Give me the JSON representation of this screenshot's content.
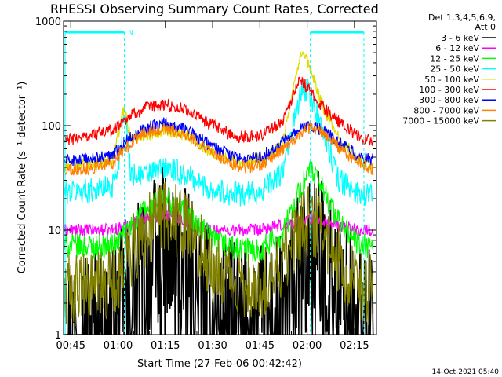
{
  "chart_data": {
    "type": "line",
    "title": "RHESSI Observing Summary Count Rates, Corrected",
    "xlabel": "Start Time (27-Feb-06 00:42:42)",
    "ylabel": "Corrected Count Rate (s⁻¹ detector⁻¹)",
    "y_scale": "log",
    "ylim": [
      1,
      1000
    ],
    "xlim": [
      "00:42:42",
      "02:22:00"
    ],
    "x_ticks": [
      "00:45",
      "01:00",
      "01:15",
      "01:30",
      "01:45",
      "02:00",
      "02:15"
    ],
    "y_ticks": [
      "1",
      "10",
      "100",
      "1000"
    ],
    "grid": false,
    "legend_position": "top-right",
    "legend_header": [
      "Det 1,3,4,5,6,9,",
      "Att 0"
    ],
    "annotations": {
      "night_marker": "N",
      "night_intervals": [
        [
          "00:42:42",
          "01:02:00"
        ],
        [
          "02:01:00",
          "02:18:00"
        ]
      ],
      "night_bar_color": "#00ffff"
    },
    "timestamp": "14-Oct-2021 05:40",
    "series": [
      {
        "name": "3 - 6 keV",
        "color": "#000000",
        "x": [
          "00:43",
          "00:50",
          "00:58",
          "01:02",
          "01:08",
          "01:15",
          "01:22",
          "01:30",
          "01:38",
          "01:45",
          "01:52",
          "01:58",
          "02:01",
          "02:05",
          "02:10",
          "02:17",
          "02:21"
        ],
        "y": [
          1,
          1,
          1,
          1.5,
          3,
          5.5,
          3,
          1.3,
          1,
          1,
          1.3,
          3,
          6,
          4,
          2,
          1,
          1
        ]
      },
      {
        "name": "6 - 12 keV",
        "color": "#ff00ff",
        "x": [
          "00:43",
          "00:50",
          "00:58",
          "01:02",
          "01:08",
          "01:15",
          "01:22",
          "01:30",
          "01:38",
          "01:45",
          "01:52",
          "01:58",
          "02:01",
          "02:05",
          "02:10",
          "02:17",
          "02:21"
        ],
        "y": [
          10,
          10,
          10,
          11,
          13,
          14,
          12,
          10,
          10,
          10,
          11,
          12,
          13,
          12,
          11,
          10,
          10
        ]
      },
      {
        "name": "12 - 25 keV",
        "color": "#00ff00",
        "x": [
          "00:43",
          "00:50",
          "00:58",
          "01:02",
          "01:08",
          "01:15",
          "01:22",
          "01:30",
          "01:38",
          "01:45",
          "01:52",
          "01:58",
          "02:01",
          "02:05",
          "02:10",
          "02:17",
          "02:21"
        ],
        "y": [
          7,
          7,
          7,
          9,
          15,
          20,
          14,
          8,
          6.5,
          6.5,
          9,
          25,
          38,
          25,
          12,
          7,
          7
        ]
      },
      {
        "name": "25 - 50 keV",
        "color": "#00ffff",
        "x": [
          "00:43",
          "00:50",
          "00:58",
          "01:00",
          "01:02",
          "01:04",
          "01:08",
          "01:15",
          "01:22",
          "01:30",
          "01:38",
          "01:45",
          "01:52",
          "01:58",
          "02:00",
          "02:05",
          "02:10",
          "02:17",
          "02:21"
        ],
        "y": [
          23,
          24,
          26,
          40,
          150,
          35,
          33,
          40,
          33,
          24,
          22,
          23,
          35,
          200,
          230,
          90,
          30,
          22,
          22
        ]
      },
      {
        "name": "50 - 100 keV",
        "color": "#dddd00",
        "x": [
          "00:43",
          "00:50",
          "00:58",
          "01:00",
          "01:02",
          "01:04",
          "01:08",
          "01:15",
          "01:22",
          "01:30",
          "01:38",
          "01:45",
          "01:52",
          "01:58",
          "02:00",
          "02:05",
          "02:10",
          "02:17",
          "02:21"
        ],
        "y": [
          42,
          43,
          47,
          80,
          150,
          75,
          80,
          92,
          80,
          55,
          45,
          48,
          65,
          480,
          420,
          150,
          75,
          45,
          42
        ]
      },
      {
        "name": "100 - 300 keV",
        "color": "#ff0000",
        "x": [
          "00:43",
          "00:50",
          "00:58",
          "01:02",
          "01:08",
          "01:15",
          "01:22",
          "01:30",
          "01:38",
          "01:45",
          "01:52",
          "01:58",
          "02:00",
          "02:05",
          "02:10",
          "02:17",
          "02:21"
        ],
        "y": [
          72,
          80,
          90,
          115,
          145,
          160,
          140,
          100,
          78,
          80,
          110,
          280,
          230,
          150,
          110,
          75,
          72
        ]
      },
      {
        "name": "300 - 800 keV",
        "color": "#0000ff",
        "x": [
          "00:43",
          "00:50",
          "00:58",
          "01:02",
          "01:08",
          "01:15",
          "01:22",
          "01:30",
          "01:38",
          "01:45",
          "01:52",
          "01:58",
          "02:01",
          "02:05",
          "02:10",
          "02:17",
          "02:21"
        ],
        "y": [
          46,
          47,
          52,
          70,
          95,
          105,
          90,
          63,
          48,
          50,
          68,
          92,
          100,
          90,
          70,
          50,
          46
        ]
      },
      {
        "name": "800 - 7000 keV",
        "color": "#ff8000",
        "x": [
          "00:43",
          "00:50",
          "00:58",
          "01:02",
          "01:08",
          "01:15",
          "01:22",
          "01:30",
          "01:38",
          "01:45",
          "01:52",
          "01:58",
          "02:01",
          "02:05",
          "02:10",
          "02:17",
          "02:21"
        ],
        "y": [
          38,
          39,
          43,
          60,
          85,
          95,
          82,
          55,
          40,
          41,
          58,
          85,
          95,
          85,
          62,
          42,
          38
        ]
      },
      {
        "name": "7000 - 15000 keV",
        "color": "#808000",
        "x": [
          "00:43",
          "00:50",
          "00:58",
          "01:02",
          "01:08",
          "01:15",
          "01:22",
          "01:30",
          "01:38",
          "01:45",
          "01:52",
          "01:58",
          "02:01",
          "02:05",
          "02:10",
          "02:17",
          "02:21"
        ],
        "y": [
          2.6,
          2.7,
          3,
          5,
          9,
          15,
          10,
          4.5,
          3,
          3,
          5,
          10,
          13,
          10,
          5,
          2.8,
          2.6
        ]
      }
    ]
  }
}
